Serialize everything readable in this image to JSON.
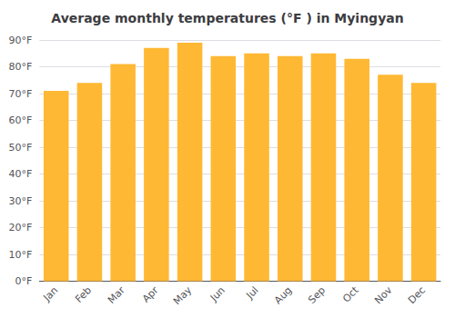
{
  "chart_data": {
    "type": "bar",
    "title": "Average monthly temperatures (°F ) in Myingyan",
    "categories": [
      "Jan",
      "Feb",
      "Mar",
      "Apr",
      "May",
      "Jun",
      "Jul",
      "Aug",
      "Sep",
      "Oct",
      "Nov",
      "Dec"
    ],
    "values": [
      71,
      74,
      81,
      87,
      89,
      84,
      85,
      84,
      85,
      83,
      77,
      74
    ],
    "color": "#FFB833",
    "ylim": [
      0,
      90
    ],
    "yticks": [
      {
        "value": 0,
        "label": "0°F"
      },
      {
        "value": 10,
        "label": "10°F"
      },
      {
        "value": 20,
        "label": "20°F"
      },
      {
        "value": 30,
        "label": "30°F"
      },
      {
        "value": 40,
        "label": "40°F"
      },
      {
        "value": 50,
        "label": "50°F"
      },
      {
        "value": 60,
        "label": "60°F"
      },
      {
        "value": 70,
        "label": "70°F"
      },
      {
        "value": 80,
        "label": "80°F"
      },
      {
        "value": 90,
        "label": "90°F"
      }
    ],
    "grid": true
  }
}
